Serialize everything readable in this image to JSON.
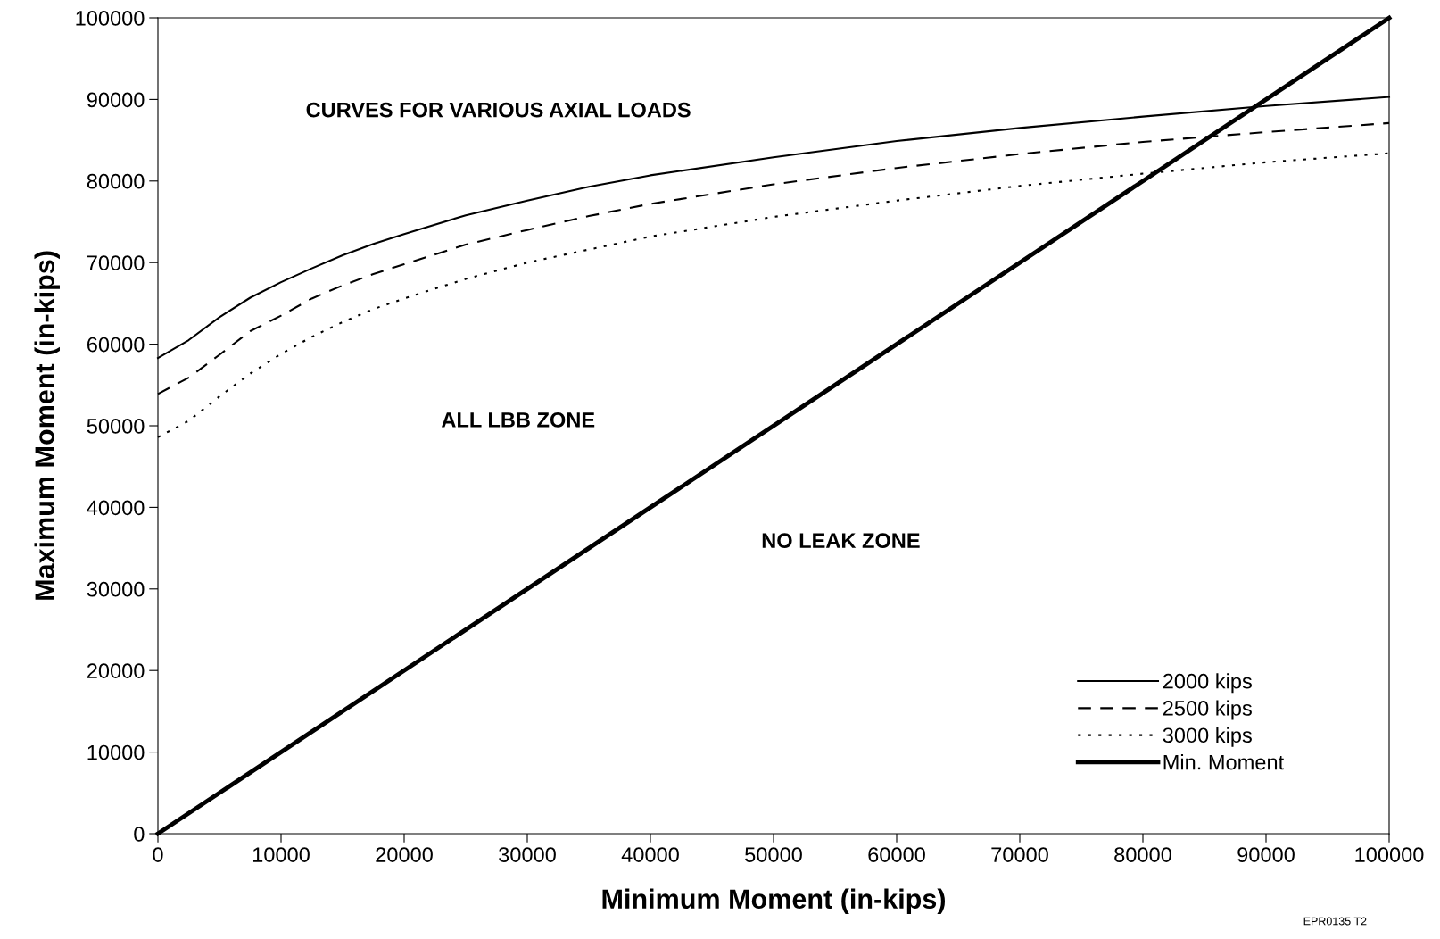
{
  "chart_data": {
    "type": "line",
    "xlabel": "Minimum Moment (in-kips)",
    "ylabel": "Maximum Moment (in-kips)",
    "x": [
      0,
      2500,
      5000,
      7500,
      10000,
      12500,
      15000,
      17500,
      20000,
      25000,
      30000,
      35000,
      40000,
      50000,
      60000,
      70000,
      80000,
      90000,
      100000
    ],
    "series": [
      {
        "name": "2000 kips",
        "color": "#000000",
        "line_style": "solid",
        "values": [
          58300,
          60500,
          63300,
          65700,
          67600,
          69300,
          70900,
          72300,
          73500,
          75800,
          77600,
          79300,
          80700,
          82900,
          84900,
          86500,
          87900,
          89200,
          90300
        ]
      },
      {
        "name": "2500 kips",
        "color": "#000000",
        "line_style": "dashed",
        "values": [
          53900,
          55900,
          58700,
          61600,
          63500,
          65600,
          67200,
          68600,
          69800,
          72200,
          74000,
          75700,
          77200,
          79600,
          81600,
          83300,
          84800,
          86000,
          87100
        ]
      },
      {
        "name": "3000 kips",
        "color": "#000000",
        "line_style": "dotted",
        "values": [
          48600,
          50600,
          53600,
          56400,
          58800,
          60900,
          62700,
          64300,
          65600,
          68000,
          70000,
          71600,
          73200,
          75600,
          77600,
          79400,
          80900,
          82300,
          83400
        ]
      },
      {
        "name": "Min. Moment",
        "color": "#000000",
        "line_style": "solid",
        "x": [
          0,
          100000
        ],
        "values": [
          0,
          100000
        ]
      }
    ],
    "xlim": [
      0,
      100000
    ],
    "ylim": [
      0,
      100000
    ],
    "xticks": [
      0,
      10000,
      20000,
      30000,
      40000,
      50000,
      60000,
      70000,
      80000,
      90000,
      100000
    ],
    "yticks": [
      0,
      10000,
      20000,
      30000,
      40000,
      50000,
      60000,
      70000,
      80000,
      90000,
      100000
    ],
    "grid": false,
    "legend": "bottom right",
    "marker": "none",
    "annotations": [
      "CURVES FOR VARIOUS AXIAL LOADS",
      "ALL LBB ZONE",
      "NO LEAK ZONE",
      "EPR0135 T2"
    ]
  }
}
